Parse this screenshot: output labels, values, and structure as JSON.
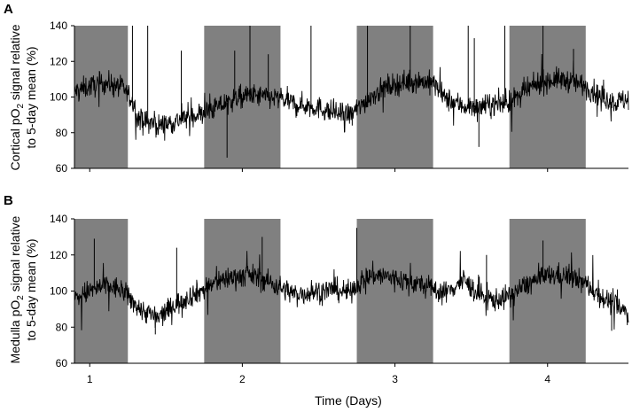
{
  "chart_data": [
    {
      "type": "line",
      "panel_label": "A",
      "ylabel_line1": "Cortical pO",
      "ylabel_sub": "2",
      "ylabel_line1_end": " signal relative",
      "ylabel_line2": "to 5-day mean (%)",
      "ylim": [
        60,
        140
      ],
      "yticks": [
        60,
        80,
        100,
        120,
        140
      ],
      "xlim": [
        0.9,
        4.53
      ],
      "dark_periods": [
        [
          0.9,
          1.25
        ],
        [
          1.75,
          2.25
        ],
        [
          2.75,
          3.25
        ],
        [
          3.75,
          4.25
        ]
      ],
      "shading_color": "#808080",
      "line_color": "#000000",
      "series_outline": {
        "x": [
          0.9,
          1.0,
          1.1,
          1.2,
          1.25,
          1.33,
          1.45,
          1.55,
          1.65,
          1.75,
          1.85,
          1.95,
          2.05,
          2.15,
          2.25,
          2.35,
          2.5,
          2.6,
          2.7,
          2.75,
          2.85,
          2.95,
          3.05,
          3.15,
          3.25,
          3.33,
          3.45,
          3.55,
          3.65,
          3.75,
          3.85,
          3.95,
          4.05,
          4.15,
          4.25,
          4.35,
          4.45,
          4.53
        ],
        "y": [
          103,
          106,
          108,
          106,
          102,
          87,
          84,
          86,
          89,
          91,
          95,
          99,
          101,
          100,
          99,
          96,
          94,
          91,
          90,
          93,
          101,
          106,
          108,
          109,
          108,
          99,
          95,
          94,
          96,
          97,
          103,
          108,
          110,
          109,
          106,
          100,
          97,
          99
        ]
      },
      "spikes": [
        {
          "x": 1.28,
          "y": 140
        },
        {
          "x": 1.38,
          "y": 140
        },
        {
          "x": 1.6,
          "y": 126
        },
        {
          "x": 1.95,
          "y": 126
        },
        {
          "x": 2.05,
          "y": 140
        },
        {
          "x": 2.17,
          "y": 124
        },
        {
          "x": 2.45,
          "y": 140
        },
        {
          "x": 2.72,
          "y": 84
        },
        {
          "x": 2.82,
          "y": 140
        },
        {
          "x": 3.1,
          "y": 140
        },
        {
          "x": 3.48,
          "y": 140
        },
        {
          "x": 3.52,
          "y": 133
        },
        {
          "x": 3.72,
          "y": 140
        },
        {
          "x": 3.97,
          "y": 140
        },
        {
          "x": 4.17,
          "y": 127
        },
        {
          "x": 1.9,
          "y": 66
        },
        {
          "x": 3.55,
          "y": 72
        }
      ]
    },
    {
      "type": "line",
      "panel_label": "B",
      "ylabel_line1": "Medulla pO",
      "ylabel_sub": "2",
      "ylabel_line1_end": " signal relative",
      "ylabel_line2": "to 5-day mean (%)",
      "ylim": [
        60,
        140
      ],
      "yticks": [
        60,
        80,
        100,
        120,
        140
      ],
      "xlim": [
        0.9,
        4.53
      ],
      "xticks": [
        1,
        2,
        3,
        4
      ],
      "xlabel": "Time (Days)",
      "dark_periods": [
        [
          0.9,
          1.25
        ],
        [
          1.75,
          2.25
        ],
        [
          2.75,
          3.25
        ],
        [
          3.75,
          4.25
        ]
      ],
      "shading_color": "#808080",
      "line_color": "#000000",
      "series_outline": {
        "x": [
          0.9,
          1.0,
          1.1,
          1.2,
          1.25,
          1.33,
          1.45,
          1.55,
          1.65,
          1.75,
          1.85,
          1.95,
          2.05,
          2.15,
          2.25,
          2.35,
          2.5,
          2.6,
          2.7,
          2.75,
          2.85,
          2.95,
          3.05,
          3.15,
          3.25,
          3.33,
          3.45,
          3.55,
          3.65,
          3.75,
          3.85,
          3.95,
          4.05,
          4.15,
          4.25,
          4.35,
          4.45,
          4.53
        ],
        "y": [
          96,
          100,
          103,
          101,
          97,
          90,
          85,
          92,
          97,
          101,
          106,
          108,
          109,
          106,
          102,
          98,
          100,
          101,
          99,
          104,
          109,
          108,
          106,
          104,
          101,
          99,
          106,
          98,
          95,
          97,
          103,
          107,
          109,
          108,
          104,
          97,
          92,
          87
        ]
      },
      "spikes": [
        {
          "x": 1.03,
          "y": 129
        },
        {
          "x": 1.57,
          "y": 124
        },
        {
          "x": 2.13,
          "y": 130
        },
        {
          "x": 2.75,
          "y": 135
        },
        {
          "x": 3.6,
          "y": 120
        },
        {
          "x": 3.97,
          "y": 128
        },
        {
          "x": 4.42,
          "y": 78
        },
        {
          "x": 1.43,
          "y": 76
        }
      ]
    }
  ]
}
